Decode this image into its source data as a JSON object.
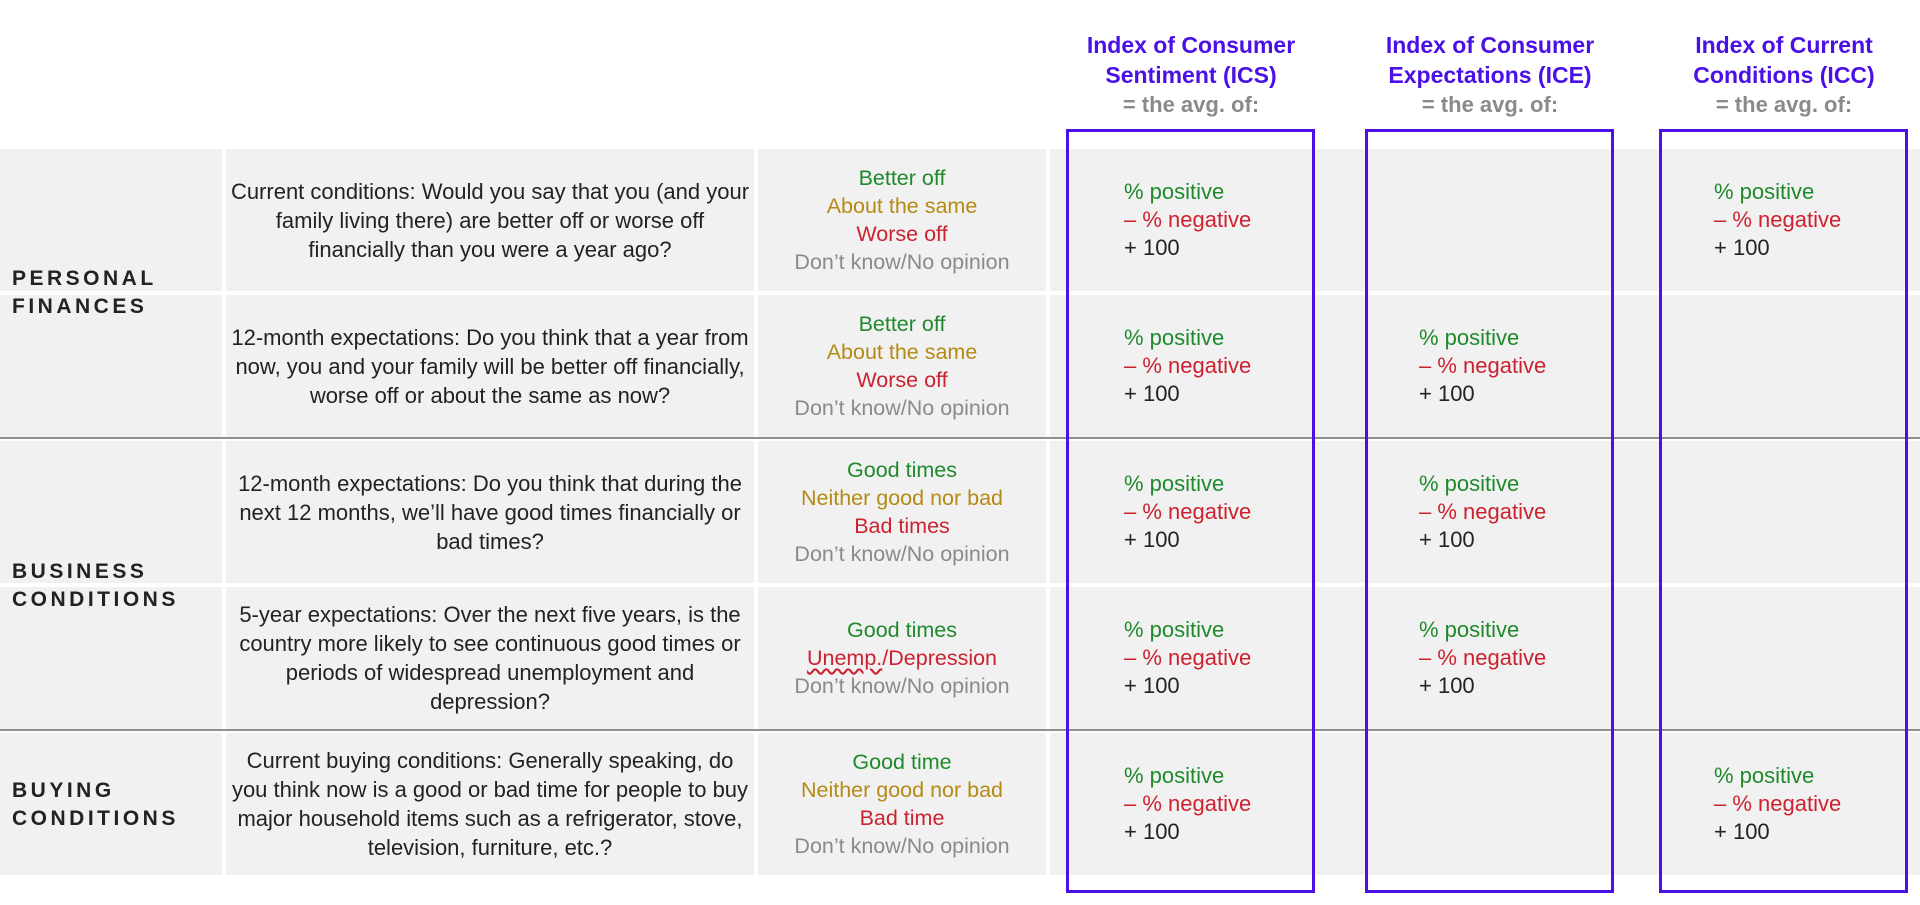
{
  "headers": [
    {
      "title_line1": "Index of Consumer",
      "title_line2": "Sentiment (ICS)",
      "sub": "= the avg. of:"
    },
    {
      "title_line1": "Index of Consumer",
      "title_line2": "Expectations (ICE)",
      "sub": "= the avg. of:"
    },
    {
      "title_line1": "Index of Current",
      "title_line2": "Conditions (ICC)",
      "sub": "= the avg. of:"
    }
  ],
  "sections": {
    "personal": [
      "PERSONAL",
      "FINANCES"
    ],
    "business": [
      "BUSINESS",
      "CONDITIONS"
    ],
    "buying": [
      "BUYING",
      "CONDITIONS"
    ]
  },
  "formula": {
    "pos": "% positive",
    "neg": "– % negative",
    "plus": "+ 100"
  },
  "rows": [
    {
      "question": "Current conditions: Would you say that you (and your family living there) are better off or worse off financially than you were a year ago?",
      "answers": [
        "Better off",
        "About the same",
        "Worse off",
        "Don’t know/No opinion"
      ]
    },
    {
      "question": "12-month expectations: Do you think that a year from now, you and your family will be better off financially, worse off or about the same as now?",
      "answers": [
        "Better off",
        "About the same",
        "Worse off",
        "Don’t know/No opinion"
      ]
    },
    {
      "question": "12-month expectations: Do you think that during the next 12 months, we’ll have good times financially or bad times?",
      "answers": [
        "Good times",
        "Neither good nor bad",
        "Bad times",
        "Don’t know/No opinion"
      ]
    },
    {
      "question": "5-year expectations: Over the next five years, is the country more likely to see continuous good times or periods of widespread unemployment and depression?",
      "answers": [
        "Good times",
        "Unemp.",
        "/Depression",
        "Don’t know/No opinion"
      ]
    },
    {
      "question": "Current buying conditions: Generally speaking, do you think now is a good or bad time for people to buy major household items such as a refrigerator, stove, television, furniture, etc.?",
      "answers": [
        "Good time",
        "Neither good nor bad",
        "Bad time",
        "Don’t know/No opinion"
      ]
    }
  ]
}
